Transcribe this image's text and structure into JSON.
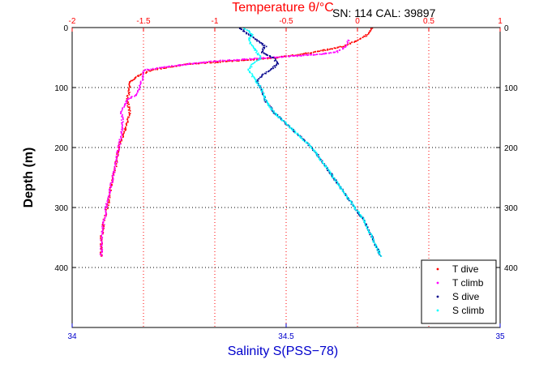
{
  "chart_data": {
    "type": "scatter",
    "title": "Temperature θ/°C",
    "annotation": "SN: 114  CAL: 39897",
    "top_axis": {
      "label": "Temperature θ/°C",
      "range": [
        -2,
        1
      ],
      "ticks": [
        -2,
        -1.5,
        -1,
        -0.5,
        0,
        0.5,
        1
      ],
      "tick_labels": [
        "-2",
        "-1.5",
        "-1",
        "-0.5",
        "0",
        "0.5",
        "1"
      ],
      "color": "#ff0000"
    },
    "bottom_axis": {
      "label": "Salinity S(PSS−78)",
      "range": [
        34,
        35
      ],
      "ticks": [
        34,
        34.5,
        35
      ],
      "tick_labels": [
        "34",
        "34.5",
        "35"
      ],
      "color": "#0000cc"
    },
    "y_axis": {
      "label": "Depth (m)",
      "range": [
        0,
        500
      ],
      "reversed": true,
      "ticks": [
        0,
        100,
        200,
        300,
        400
      ],
      "tick_labels": [
        "0",
        "100",
        "200",
        "300",
        "400"
      ]
    },
    "grid": true,
    "legend_position": "bottom-right",
    "series": [
      {
        "name": "T dive",
        "axis": "top",
        "color": "#ff0000",
        "points": [
          [
            0.1,
            0
          ],
          [
            0.07,
            10
          ],
          [
            0,
            20
          ],
          [
            -0.1,
            30
          ],
          [
            -0.3,
            40
          ],
          [
            -0.6,
            50
          ],
          [
            -0.9,
            55
          ],
          [
            -1.2,
            60
          ],
          [
            -1.45,
            70
          ],
          [
            -1.55,
            80
          ],
          [
            -1.6,
            90
          ],
          [
            -1.6,
            100
          ],
          [
            -1.62,
            120
          ],
          [
            -1.6,
            140
          ],
          [
            -1.62,
            160
          ],
          [
            -1.65,
            180
          ],
          [
            -1.68,
            200
          ],
          [
            -1.7,
            230
          ],
          [
            -1.73,
            260
          ],
          [
            -1.75,
            290
          ],
          [
            -1.78,
            320
          ],
          [
            -1.8,
            350
          ],
          [
            -1.8,
            380
          ]
        ]
      },
      {
        "name": "T climb",
        "axis": "top",
        "color": "#ff00ff",
        "points": [
          [
            -1.8,
            380
          ],
          [
            -1.8,
            350
          ],
          [
            -1.78,
            320
          ],
          [
            -1.76,
            290
          ],
          [
            -1.73,
            260
          ],
          [
            -1.7,
            230
          ],
          [
            -1.68,
            200
          ],
          [
            -1.66,
            180
          ],
          [
            -1.65,
            160
          ],
          [
            -1.66,
            140
          ],
          [
            -1.62,
            120
          ],
          [
            -1.55,
            110
          ],
          [
            -1.52,
            90
          ],
          [
            -1.5,
            70
          ],
          [
            -1.2,
            60
          ],
          [
            -1.0,
            55
          ],
          [
            -0.8,
            52
          ],
          [
            -0.55,
            48
          ],
          [
            -0.3,
            44
          ],
          [
            -0.15,
            40
          ],
          [
            -0.08,
            30
          ],
          [
            -0.07,
            20
          ]
        ]
      },
      {
        "name": "S dive",
        "axis": "bottom",
        "color": "#00008b",
        "points": [
          [
            34.39,
            0
          ],
          [
            34.41,
            10
          ],
          [
            34.43,
            20
          ],
          [
            34.45,
            30
          ],
          [
            34.44,
            40
          ],
          [
            34.47,
            50
          ],
          [
            34.48,
            60
          ],
          [
            34.46,
            70
          ],
          [
            34.44,
            80
          ],
          [
            34.43,
            90
          ],
          [
            34.44,
            100
          ],
          [
            34.45,
            120
          ],
          [
            34.47,
            140
          ],
          [
            34.5,
            160
          ],
          [
            34.53,
            180
          ],
          [
            34.56,
            200
          ],
          [
            34.59,
            230
          ],
          [
            34.62,
            260
          ],
          [
            34.65,
            290
          ],
          [
            34.68,
            320
          ],
          [
            34.7,
            350
          ],
          [
            34.72,
            380
          ]
        ]
      },
      {
        "name": "S climb",
        "axis": "bottom",
        "color": "#00ffff",
        "points": [
          [
            34.72,
            380
          ],
          [
            34.7,
            350
          ],
          [
            34.68,
            320
          ],
          [
            34.65,
            290
          ],
          [
            34.62,
            260
          ],
          [
            34.59,
            230
          ],
          [
            34.56,
            200
          ],
          [
            34.53,
            180
          ],
          [
            34.5,
            160
          ],
          [
            34.47,
            140
          ],
          [
            34.45,
            120
          ],
          [
            34.44,
            100
          ],
          [
            34.43,
            90
          ],
          [
            34.42,
            80
          ],
          [
            34.41,
            70
          ],
          [
            34.42,
            60
          ],
          [
            34.44,
            50
          ],
          [
            34.43,
            40
          ],
          [
            34.42,
            30
          ],
          [
            34.41,
            20
          ],
          [
            34.42,
            10
          ],
          [
            34.4,
            0
          ]
        ]
      }
    ],
    "legend": [
      {
        "label": "T dive",
        "color": "#ff0000"
      },
      {
        "label": "T climb",
        "color": "#ff00ff"
      },
      {
        "label": "S dive",
        "color": "#00008b"
      },
      {
        "label": "S climb",
        "color": "#00ffff"
      }
    ]
  }
}
